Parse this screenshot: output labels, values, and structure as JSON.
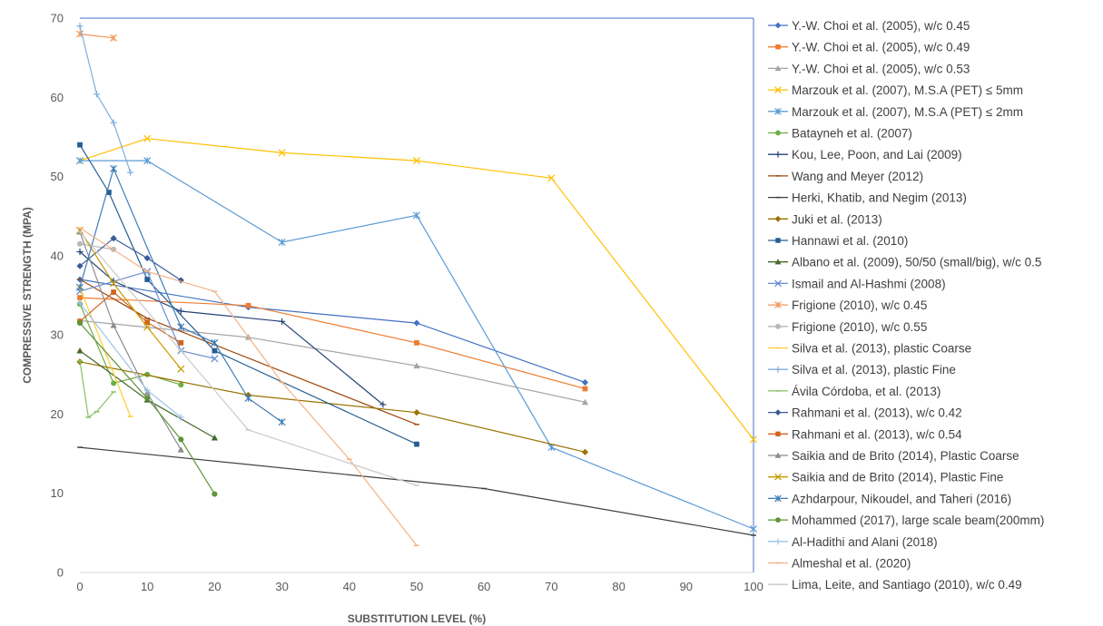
{
  "chart_data": {
    "type": "line",
    "title": "",
    "xlabel": "SUBSTITUTION LEVEL (%)",
    "ylabel": "COMPRESSIVE STRENGTH (MPA)",
    "xlim": [
      0,
      100
    ],
    "ylim": [
      0,
      70
    ],
    "x_ticks": [
      "0",
      "10",
      "20",
      "30",
      "40",
      "50",
      "60",
      "70",
      "80",
      "90",
      "100"
    ],
    "y_ticks": [
      "0",
      "10",
      "20",
      "30",
      "40",
      "50",
      "60",
      "70"
    ],
    "grid": false,
    "legend_position": "right",
    "series": [
      {
        "name": "Y.-W. Choi et al. (2005), w/c 0.45",
        "color": "#4472C4",
        "marker": "diamond",
        "points": [
          [
            0,
            37
          ],
          [
            25,
            33.5
          ],
          [
            50,
            31.5
          ],
          [
            75,
            24
          ]
        ]
      },
      {
        "name": "Y.-W. Choi et al. (2005), w/c 0.49",
        "color": "#ED7D31",
        "marker": "square",
        "points": [
          [
            0,
            34.7
          ],
          [
            25,
            33.7
          ],
          [
            50,
            29
          ],
          [
            75,
            23.2
          ]
        ]
      },
      {
        "name": "Y.-W. Choi et al. (2005), w/c 0.53",
        "color": "#A5A5A5",
        "marker": "triangle",
        "points": [
          [
            0,
            31.8
          ],
          [
            25,
            29.7
          ],
          [
            50,
            26.1
          ],
          [
            75,
            21.5
          ]
        ]
      },
      {
        "name": "Marzouk et al. (2007), M.S.A (PET) ≤ 5mm",
        "color": "#FFC000",
        "marker": "x",
        "points": [
          [
            0,
            52
          ],
          [
            10,
            54.8
          ],
          [
            30,
            53
          ],
          [
            50,
            52
          ],
          [
            70,
            49.8
          ],
          [
            100,
            16.8
          ]
        ]
      },
      {
        "name": "Marzouk et al. (2007), M.S.A (PET) ≤ 2mm",
        "color": "#5B9BD5",
        "marker": "star",
        "points": [
          [
            0,
            52
          ],
          [
            10,
            52
          ],
          [
            30,
            41.7
          ],
          [
            50,
            45.1
          ],
          [
            70,
            15.8
          ],
          [
            100,
            5.5
          ]
        ]
      },
      {
        "name": "Batayneh et al. (2007)",
        "color": "#70AD47",
        "marker": "circle",
        "points": [
          [
            0,
            33.9
          ],
          [
            5,
            23.9
          ],
          [
            10,
            25
          ],
          [
            15,
            23.7
          ]
        ]
      },
      {
        "name": "Kou, Lee, Poon, and Lai (2009)",
        "color": "#264478",
        "marker": "plus",
        "points": [
          [
            0,
            40.5
          ],
          [
            5,
            36.8
          ],
          [
            15,
            33
          ],
          [
            30,
            31.7
          ],
          [
            45,
            21.2
          ]
        ]
      },
      {
        "name": "Wang and Meyer (2012)",
        "color": "#9E480E",
        "marker": "dash",
        "points": [
          [
            0,
            37
          ],
          [
            10,
            32.1
          ],
          [
            50,
            18.7
          ]
        ]
      },
      {
        "name": "Herki, Khatib, and Negim (2013)",
        "color": "#404040",
        "marker": "dash",
        "points": [
          [
            0,
            15.8
          ],
          [
            60,
            10.6
          ],
          [
            100,
            4.7
          ]
        ]
      },
      {
        "name": "Juki et al. (2013)",
        "color": "#997300",
        "marker": "diamond",
        "points": [
          [
            0,
            26.6
          ],
          [
            25,
            22.4
          ],
          [
            50,
            20.2
          ],
          [
            75,
            15.2
          ]
        ]
      },
      {
        "name": "Hannawi et al. (2010)",
        "color": "#255E91",
        "marker": "square",
        "points": [
          [
            0,
            54
          ],
          [
            4.3,
            48
          ],
          [
            10,
            37
          ],
          [
            20,
            28
          ],
          [
            50,
            16.2
          ]
        ]
      },
      {
        "name": "Albano et al. (2009), 50/50 (small/big), w/c 0.5",
        "color": "#43682B",
        "marker": "triangle",
        "points": [
          [
            0,
            28
          ],
          [
            10,
            21.8
          ],
          [
            20,
            17
          ]
        ]
      },
      {
        "name": "Ismail and Al-Hashmi (2008)",
        "color": "#698ED0",
        "marker": "x",
        "points": [
          [
            0,
            35.5
          ],
          [
            10,
            38
          ],
          [
            15,
            28
          ],
          [
            20,
            27
          ]
        ]
      },
      {
        "name": "Frigione (2010), w/c 0.45",
        "color": "#F1975A",
        "marker": "star",
        "points": [
          [
            0,
            68
          ],
          [
            5,
            67.5
          ]
        ]
      },
      {
        "name": "Frigione (2010), w/c 0.55",
        "color": "#B7B7B7",
        "marker": "circle",
        "points": [
          [
            0,
            41.5
          ],
          [
            5,
            40.8
          ]
        ]
      },
      {
        "name": "Silva et al. (2013), plastic Coarse",
        "color": "#FFCD33",
        "marker": "dash",
        "points": [
          [
            0,
            36
          ],
          [
            7.5,
            19.7
          ]
        ]
      },
      {
        "name": "Silva et al. (2013), plastic Fine",
        "color": "#7CAFDD",
        "marker": "plus",
        "points": [
          [
            0,
            69
          ],
          [
            2.5,
            60.4
          ],
          [
            5,
            56.8
          ],
          [
            7.5,
            50.5
          ]
        ]
      },
      {
        "name": "Ávila Córdoba, et al. (2013)",
        "color": "#8CC168",
        "marker": "dash",
        "points": [
          [
            0,
            26.7
          ],
          [
            1.25,
            19.6
          ],
          [
            2.5,
            20.3
          ],
          [
            5,
            22.8
          ]
        ]
      },
      {
        "name": "Rahmani et al. (2013), w/c 0.42",
        "color": "#3A5C99",
        "marker": "diamond",
        "points": [
          [
            0,
            38.7
          ],
          [
            5,
            42.2
          ],
          [
            10,
            39.7
          ],
          [
            15,
            36.9
          ]
        ]
      },
      {
        "name": "Rahmani et al. (2013), w/c 0.54",
        "color": "#D0651F",
        "marker": "square",
        "points": [
          [
            0,
            31.7
          ],
          [
            5,
            35.4
          ],
          [
            10,
            31.6
          ],
          [
            15,
            29
          ]
        ]
      },
      {
        "name": "Saikia and de Brito (2014), Plastic Coarse",
        "color": "#8C8C8C",
        "marker": "triangle",
        "points": [
          [
            0,
            43
          ],
          [
            5,
            31.2
          ],
          [
            10,
            22.7
          ],
          [
            15,
            15.5
          ]
        ]
      },
      {
        "name": "Saikia and de Brito (2014), Plastic Fine",
        "color": "#C59B00",
        "marker": "x",
        "points": [
          [
            0,
            43.2
          ],
          [
            5,
            36.5
          ],
          [
            10,
            31
          ],
          [
            15,
            25.7
          ]
        ]
      },
      {
        "name": "Azhdarpour, Nikoudel, and Taheri (2016)",
        "color": "#3F7CB4",
        "marker": "star",
        "points": [
          [
            0,
            36
          ],
          [
            5,
            51
          ],
          [
            15,
            31
          ],
          [
            20,
            29
          ],
          [
            25,
            22
          ],
          [
            30,
            19
          ]
        ]
      },
      {
        "name": "Mohammed (2017), large scale beam(200mm)",
        "color": "#5E9438",
        "marker": "circle",
        "points": [
          [
            0,
            31.5
          ],
          [
            10,
            22
          ],
          [
            15,
            16.8
          ],
          [
            20,
            9.9
          ]
        ]
      },
      {
        "name": "Al-Hadithi and Alani (2018)",
        "color": "#9DC3E6",
        "marker": "plus",
        "points": [
          [
            0,
            34
          ],
          [
            10,
            23
          ],
          [
            15,
            19.6
          ]
        ]
      },
      {
        "name": "Almeshal et al. (2020)",
        "color": "#F4B183",
        "marker": "dash",
        "points": [
          [
            0,
            43.5
          ],
          [
            10,
            38
          ],
          [
            20,
            35.5
          ],
          [
            30,
            24
          ],
          [
            40,
            14.3
          ],
          [
            50,
            3.4
          ]
        ]
      },
      {
        "name": "Lima, Leite, and Santiago (2010), w/c 0.49",
        "color": "#C9C9C9",
        "marker": "dash",
        "points": [
          [
            0,
            43
          ],
          [
            15,
            28
          ],
          [
            25,
            18
          ],
          [
            50,
            11
          ]
        ]
      }
    ]
  }
}
